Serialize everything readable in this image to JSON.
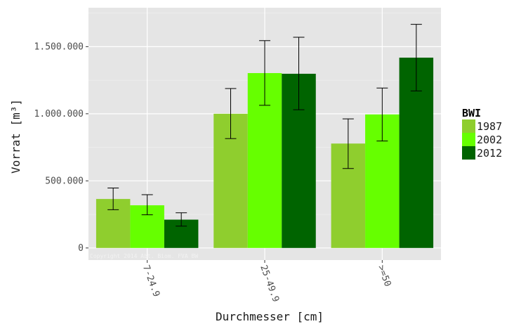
{
  "chart_data": {
    "type": "bar",
    "categories": [
      "7-24.9",
      "25-49.9",
      ">=50"
    ],
    "series": [
      {
        "name": "1987",
        "color": "#8fce2e",
        "values": [
          365000,
          1000000,
          778000
        ],
        "error_low": [
          285000,
          815000,
          592000
        ],
        "error_high": [
          447000,
          1188000,
          962000
        ]
      },
      {
        "name": "2002",
        "color": "#66ff00",
        "values": [
          318000,
          1303000,
          995000
        ],
        "error_low": [
          247000,
          1063000,
          797000
        ],
        "error_high": [
          397000,
          1545000,
          1192000
        ]
      },
      {
        "name": "2012",
        "color": "#006400",
        "values": [
          211000,
          1298000,
          1418000
        ],
        "error_low": [
          163000,
          1030000,
          1170000
        ],
        "error_high": [
          262000,
          1570000,
          1666000
        ]
      }
    ],
    "title": "",
    "xlabel": "Durchmesser [cm]",
    "ylabel": "Vorrat [m³]",
    "ylim": [
      -90000,
      1790000
    ],
    "yticks": [
      0,
      500000,
      1000000,
      1500000
    ],
    "ytick_labels": [
      "0",
      "500.000",
      "1.000.000",
      "1.500.000"
    ],
    "grid": true,
    "legend": {
      "title": "BWI",
      "position": "right"
    },
    "watermark": "Copyright 2014 Abt. Biom. FVA BW"
  }
}
